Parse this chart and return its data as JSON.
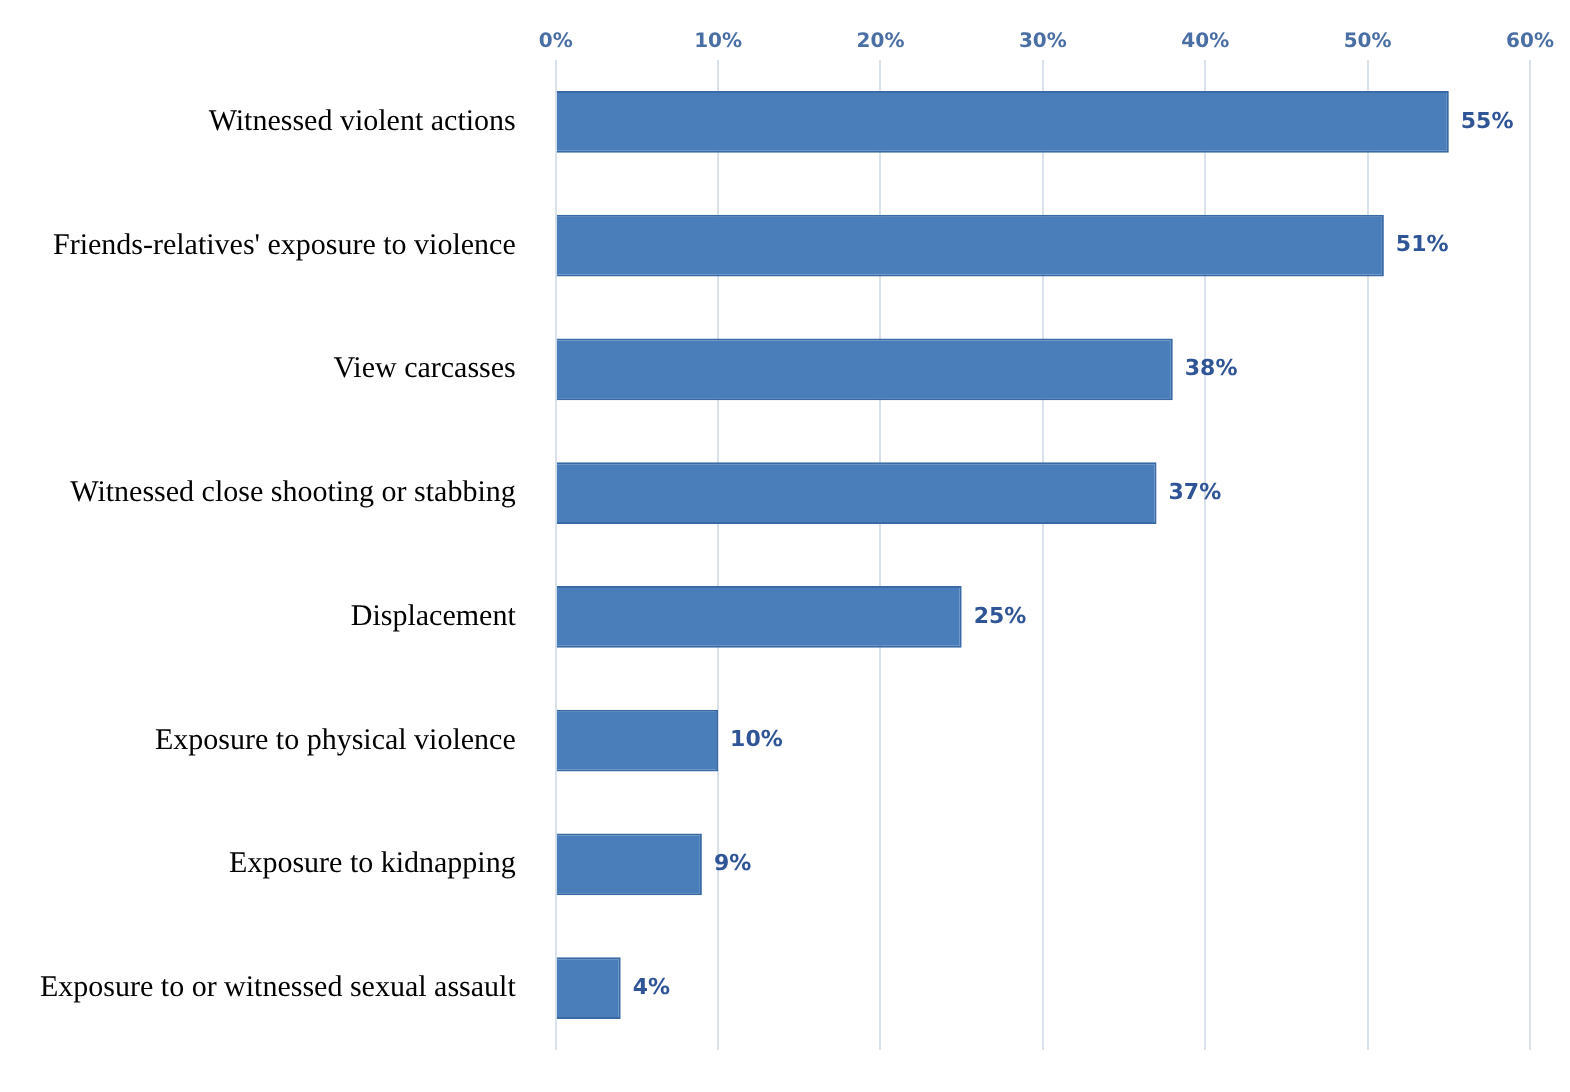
{
  "chart_data": {
    "type": "bar",
    "orientation": "horizontal",
    "categories": [
      "Witnessed violent actions",
      "Friends-relatives' exposure to violence",
      "View carcasses",
      "Witnessed close shooting or stabbing",
      "Displacement",
      "Exposure to physical violence",
      "Exposure to kidnapping",
      "Exposure to or witnessed sexual assault"
    ],
    "values": [
      55,
      51,
      38,
      37,
      25,
      10,
      9,
      4
    ],
    "value_labels": [
      "55%",
      "51%",
      "38%",
      "37%",
      "25%",
      "10%",
      "9%",
      "4%"
    ],
    "color": "#4a7ebb",
    "xlim": [
      0,
      60
    ],
    "xticks": [
      {
        "value": 0,
        "label": "0%"
      },
      {
        "value": 10,
        "label": "10%"
      },
      {
        "value": 20,
        "label": "20%"
      },
      {
        "value": 30,
        "label": "30%"
      },
      {
        "value": 40,
        "label": "40%"
      },
      {
        "value": 50,
        "label": "50%"
      },
      {
        "value": 60,
        "label": "60%"
      }
    ],
    "grid": "x",
    "legend": false
  }
}
